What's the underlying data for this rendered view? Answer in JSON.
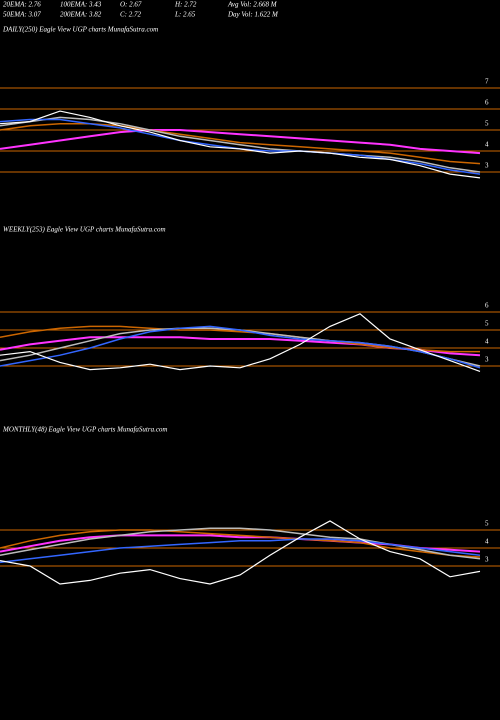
{
  "header": {
    "stats": [
      "20EMA: 2.76",
      "100EMA: 3.43",
      "O: 2.67",
      "H: 2.72",
      "Avg Vol: 2.668 M",
      "50EMA: 3.07",
      "200EMA: 3.82",
      "C: 2.72",
      "L: 2.65",
      "Day Vol: 1.622 M"
    ]
  },
  "chart_data": [
    {
      "type": "line",
      "title": "DAILY(250) Eagle  View  UGP charts MunafaSutra.com",
      "ylim": [
        0.5,
        10
      ],
      "yticks": [
        7,
        6,
        5,
        4,
        3
      ],
      "grid": true,
      "series": [
        {
          "color": "#ff33ff",
          "values": [
            4.1,
            4.3,
            4.5,
            4.7,
            4.9,
            5.0,
            5.0,
            4.9,
            4.8,
            4.7,
            4.6,
            4.5,
            4.4,
            4.3,
            4.1,
            4.0,
            3.9
          ]
        },
        {
          "color": "#cc6600",
          "values": [
            5.0,
            5.2,
            5.3,
            5.3,
            5.2,
            5.0,
            4.8,
            4.6,
            4.4,
            4.3,
            4.2,
            4.1,
            4.0,
            3.9,
            3.7,
            3.5,
            3.4
          ]
        },
        {
          "color": "#bbbbbb",
          "values": [
            5.2,
            5.4,
            5.6,
            5.5,
            5.3,
            5.0,
            4.7,
            4.5,
            4.3,
            4.1,
            4.0,
            3.9,
            3.8,
            3.7,
            3.5,
            3.2,
            3.0
          ]
        },
        {
          "color": "#3366ff",
          "values": [
            5.4,
            5.5,
            5.5,
            5.3,
            5.1,
            4.8,
            4.5,
            4.3,
            4.1,
            4.0,
            4.0,
            3.9,
            3.8,
            3.6,
            3.4,
            3.1,
            2.9
          ]
        },
        {
          "color": "#ffffff",
          "values": [
            5.3,
            5.4,
            5.9,
            5.6,
            5.2,
            4.9,
            4.5,
            4.2,
            4.1,
            3.9,
            4.0,
            3.9,
            3.7,
            3.6,
            3.3,
            2.9,
            2.72
          ]
        }
      ]
    },
    {
      "type": "line",
      "title": "WEEKLY(253) Eagle  View  UGP charts MunafaSutra.com",
      "ylim": [
        0,
        10
      ],
      "yticks": [
        6,
        5,
        4,
        3
      ],
      "grid": true,
      "series": [
        {
          "color": "#ff33ff",
          "values": [
            3.9,
            4.2,
            4.4,
            4.6,
            4.6,
            4.6,
            4.6,
            4.5,
            4.5,
            4.5,
            4.4,
            4.3,
            4.2,
            4.0,
            3.9,
            3.7,
            3.6
          ]
        },
        {
          "color": "#cc6600",
          "values": [
            4.6,
            4.9,
            5.1,
            5.2,
            5.2,
            5.1,
            5.0,
            5.0,
            4.9,
            4.8,
            4.6,
            4.4,
            4.2,
            4.0,
            3.9,
            3.8,
            3.8
          ]
        },
        {
          "color": "#bbbbbb",
          "values": [
            3.3,
            3.6,
            4.0,
            4.4,
            4.8,
            5.0,
            5.1,
            5.1,
            5.0,
            4.8,
            4.6,
            4.4,
            4.3,
            4.1,
            3.8,
            3.4,
            3.0
          ]
        },
        {
          "color": "#3366ff",
          "values": [
            3.0,
            3.3,
            3.6,
            4.0,
            4.5,
            4.9,
            5.1,
            5.2,
            5.0,
            4.7,
            4.5,
            4.4,
            4.3,
            4.1,
            3.8,
            3.4,
            2.9
          ]
        },
        {
          "color": "#ffffff",
          "values": [
            3.6,
            3.8,
            3.2,
            2.8,
            2.9,
            3.1,
            2.8,
            3.0,
            2.9,
            3.4,
            4.2,
            5.2,
            5.9,
            4.5,
            3.9,
            3.3,
            2.7
          ]
        }
      ]
    },
    {
      "type": "line",
      "title": "MONTHLY(48) Eagle  View  UGP charts MunafaSutra.com",
      "ylim": [
        0,
        10
      ],
      "yticks": [
        5,
        4,
        3
      ],
      "grid": true,
      "series": [
        {
          "color": "#ff33ff",
          "values": [
            3.8,
            4.1,
            4.4,
            4.6,
            4.7,
            4.7,
            4.7,
            4.7,
            4.6,
            4.6,
            4.5,
            4.4,
            4.3,
            4.2,
            4.0,
            3.9,
            3.8
          ]
        },
        {
          "color": "#cc6600",
          "values": [
            4.0,
            4.4,
            4.7,
            4.9,
            5.0,
            5.0,
            4.9,
            4.8,
            4.7,
            4.6,
            4.5,
            4.4,
            4.3,
            4.0,
            3.8,
            3.6,
            3.5
          ]
        },
        {
          "color": "#bbbbbb",
          "values": [
            3.6,
            3.9,
            4.2,
            4.5,
            4.7,
            4.9,
            5.0,
            5.1,
            5.1,
            5.0,
            4.8,
            4.6,
            4.5,
            4.2,
            3.9,
            3.6,
            3.4
          ]
        },
        {
          "color": "#3366ff",
          "values": [
            3.2,
            3.4,
            3.6,
            3.8,
            4.0,
            4.1,
            4.2,
            4.3,
            4.4,
            4.4,
            4.5,
            4.5,
            4.4,
            4.2,
            4.0,
            3.8,
            3.6
          ]
        },
        {
          "color": "#ffffff",
          "values": [
            3.3,
            3.0,
            2.0,
            2.2,
            2.6,
            2.8,
            2.3,
            2.0,
            2.5,
            3.6,
            4.6,
            5.5,
            4.5,
            3.8,
            3.4,
            2.4,
            2.7
          ]
        }
      ]
    }
  ]
}
